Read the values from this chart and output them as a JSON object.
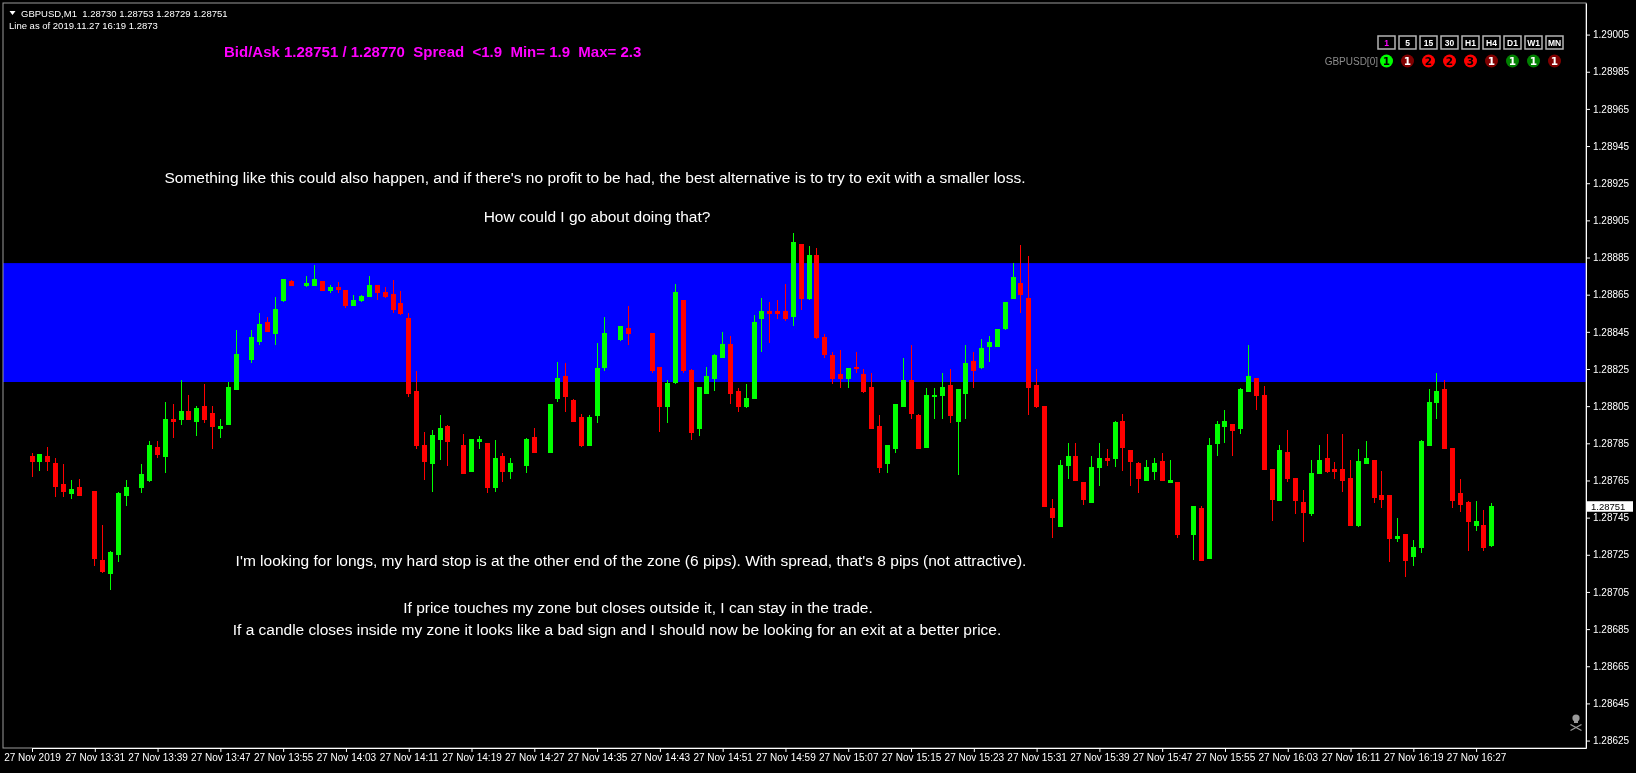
{
  "chart_data": {
    "type": "candlestick",
    "title": "GBPUSD,M1  1.28730 1.28753 1.28729 1.28751",
    "subtitle": "Line as of 2019.11.27 16:19 1.2873",
    "x": [
      "2019-11-27T13:23",
      "2019-11-27T13:24",
      "2019-11-27T13:25",
      "2019-11-27T13:26",
      "2019-11-27T13:27",
      "2019-11-27T13:28",
      "2019-11-27T13:29",
      "2019-11-27T13:31",
      "2019-11-27T13:32",
      "2019-11-27T13:33",
      "2019-11-27T13:34",
      "2019-11-27T13:35",
      "2019-11-27T13:37",
      "2019-11-27T13:38",
      "2019-11-27T13:39",
      "2019-11-27T13:40",
      "2019-11-27T13:41",
      "2019-11-27T13:42",
      "2019-11-27T13:43",
      "2019-11-27T13:44",
      "2019-11-27T13:45",
      "2019-11-27T13:46",
      "2019-11-27T13:47",
      "2019-11-27T13:48",
      "2019-11-27T13:49",
      "2019-11-27T13:51",
      "2019-11-27T13:52",
      "2019-11-27T13:53",
      "2019-11-27T13:54",
      "2019-11-27T13:55",
      "2019-11-27T13:56",
      "2019-11-27T13:58",
      "2019-11-27T13:59",
      "2019-11-27T14:00",
      "2019-11-27T14:01",
      "2019-11-27T14:02",
      "2019-11-27T14:03",
      "2019-11-27T14:04",
      "2019-11-27T14:05",
      "2019-11-27T14:06",
      "2019-11-27T14:07",
      "2019-11-27T14:08",
      "2019-11-27T14:09",
      "2019-11-27T14:10",
      "2019-11-27T14:11",
      "2019-11-27T14:12",
      "2019-11-27T14:13",
      "2019-11-27T14:14",
      "2019-11-27T14:15",
      "2019-11-27T14:16",
      "2019-11-27T14:18",
      "2019-11-27T14:19",
      "2019-11-27T14:20",
      "2019-11-27T14:21",
      "2019-11-27T14:22",
      "2019-11-27T14:23",
      "2019-11-27T14:24",
      "2019-11-27T14:26",
      "2019-11-27T14:27",
      "2019-11-27T14:29",
      "2019-11-27T14:30",
      "2019-11-27T14:31",
      "2019-11-27T14:32",
      "2019-11-27T14:33",
      "2019-11-27T14:34",
      "2019-11-27T14:35",
      "2019-11-27T14:36",
      "2019-11-27T14:38",
      "2019-11-27T14:39",
      "2019-11-27T14:42",
      "2019-11-27T14:43",
      "2019-11-27T14:44",
      "2019-11-27T14:45",
      "2019-11-27T14:46",
      "2019-11-27T14:47",
      "2019-11-27T14:48",
      "2019-11-27T14:49",
      "2019-11-27T14:50",
      "2019-11-27T14:51",
      "2019-11-27T14:52",
      "2019-11-27T14:53",
      "2019-11-27T14:54",
      "2019-11-27T14:55",
      "2019-11-27T14:56",
      "2019-11-27T14:57",
      "2019-11-27T14:58",
      "2019-11-27T14:59",
      "2019-11-27T15:00",
      "2019-11-27T15:01",
      "2019-11-27T15:02",
      "2019-11-27T15:03",
      "2019-11-27T15:04",
      "2019-11-27T15:05",
      "2019-11-27T15:06",
      "2019-11-27T15:07",
      "2019-11-27T15:08",
      "2019-11-27T15:09",
      "2019-11-27T15:10",
      "2019-11-27T15:11",
      "2019-11-27T15:12",
      "2019-11-27T15:13",
      "2019-11-27T15:14",
      "2019-11-27T15:15",
      "2019-11-27T15:16",
      "2019-11-27T15:17",
      "2019-11-27T15:18",
      "2019-11-27T15:19",
      "2019-11-27T15:20",
      "2019-11-27T15:21",
      "2019-11-27T15:22",
      "2019-11-27T15:23",
      "2019-11-27T15:24",
      "2019-11-27T15:25",
      "2019-11-27T15:26",
      "2019-11-27T15:27",
      "2019-11-27T15:28",
      "2019-11-27T15:29",
      "2019-11-27T15:30",
      "2019-11-27T15:31",
      "2019-11-27T15:32",
      "2019-11-27T15:33",
      "2019-11-27T15:34",
      "2019-11-27T15:35",
      "2019-11-27T15:36",
      "2019-11-27T15:37",
      "2019-11-27T15:38",
      "2019-11-27T15:39",
      "2019-11-27T15:40",
      "2019-11-27T15:41",
      "2019-11-27T15:42",
      "2019-11-27T15:43",
      "2019-11-27T15:44",
      "2019-11-27T15:45",
      "2019-11-27T15:46",
      "2019-11-27T15:47",
      "2019-11-27T15:48",
      "2019-11-27T15:49",
      "2019-11-27T15:51",
      "2019-11-27T15:52",
      "2019-11-27T15:53",
      "2019-11-27T15:54",
      "2019-11-27T15:55",
      "2019-11-27T15:56",
      "2019-11-27T15:57",
      "2019-11-27T15:58",
      "2019-11-27T15:59",
      "2019-11-27T16:00",
      "2019-11-27T16:01",
      "2019-11-27T16:02",
      "2019-11-27T16:03",
      "2019-11-27T16:04",
      "2019-11-27T16:05",
      "2019-11-27T16:06",
      "2019-11-27T16:07",
      "2019-11-27T16:08",
      "2019-11-27T16:09",
      "2019-11-27T16:10",
      "2019-11-27T16:11",
      "2019-11-27T16:12",
      "2019-11-27T16:13",
      "2019-11-27T16:14",
      "2019-11-27T16:15",
      "2019-11-27T16:16",
      "2019-11-27T16:17",
      "2019-11-27T16:18",
      "2019-11-27T16:19",
      "2019-11-27T16:20",
      "2019-11-27T16:21",
      "2019-11-27T16:22",
      "2019-11-27T16:23",
      "2019-11-27T16:24",
      "2019-11-27T16:25",
      "2019-11-27T16:26",
      "2019-11-27T16:27",
      "2019-11-27T16:28",
      "2019-11-27T16:29"
    ],
    "ohlc": [
      [
        1.28778,
        1.2878,
        1.28767,
        1.28775
      ],
      [
        1.28775,
        1.28779,
        1.2877,
        1.28779
      ],
      [
        1.28778,
        1.28783,
        1.2877,
        1.28775
      ],
      [
        1.28774,
        1.28777,
        1.28756,
        1.28762
      ],
      [
        1.28763,
        1.28774,
        1.28756,
        1.28759
      ],
      [
        1.28758,
        1.28765,
        1.28755,
        1.2876
      ],
      [
        1.28761,
        1.28766,
        1.28757,
        1.28757
      ],
      [
        1.28759,
        1.28759,
        1.28719,
        1.28723
      ],
      [
        1.28722,
        1.28741,
        1.28715,
        1.28716
      ],
      [
        1.28715,
        1.28727,
        1.28706,
        1.28726
      ],
      [
        1.28725,
        1.28759,
        1.28721,
        1.28758
      ],
      [
        1.28757,
        1.28765,
        1.28751,
        1.28761
      ],
      [
        1.28761,
        1.28774,
        1.28758,
        1.28768
      ],
      [
        1.28765,
        1.28786,
        1.28764,
        1.28784
      ],
      [
        1.28783,
        1.28786,
        1.28777,
        1.28779
      ],
      [
        1.28778,
        1.28807,
        1.28769,
        1.28798
      ],
      [
        1.28798,
        1.28806,
        1.28788,
        1.28797
      ],
      [
        1.28798,
        1.28819,
        1.28795,
        1.28802
      ],
      [
        1.28802,
        1.28811,
        1.28798,
        1.28798
      ],
      [
        1.28797,
        1.28805,
        1.28789,
        1.28804
      ],
      [
        1.28805,
        1.28817,
        1.28796,
        1.28798
      ],
      [
        1.28801,
        1.28805,
        1.28782,
        1.28794
      ],
      [
        1.28793,
        1.28798,
        1.28788,
        1.28794
      ],
      [
        1.28795,
        1.28818,
        1.28795,
        1.28815
      ],
      [
        1.28814,
        1.28846,
        1.28814,
        1.28833
      ],
      [
        1.2883,
        1.28846,
        1.28828,
        1.28842
      ],
      [
        1.2884,
        1.28855,
        1.28838,
        1.28849
      ],
      [
        1.2885,
        1.28853,
        1.28845,
        1.28845
      ],
      [
        1.28844,
        1.28864,
        1.28838,
        1.28857
      ],
      [
        1.28862,
        1.28873,
        1.28861,
        1.28873
      ],
      [
        1.28872,
        1.28873,
        1.2887,
        1.2887
      ],
      [
        1.2887,
        1.28875,
        1.28869,
        1.28871
      ],
      [
        1.2887,
        1.28881,
        1.2887,
        1.28873
      ],
      [
        1.28872,
        1.28872,
        1.28867,
        1.28867
      ],
      [
        1.28867,
        1.2887,
        1.28866,
        1.28869
      ],
      [
        1.28869,
        1.28872,
        1.28866,
        1.28868
      ],
      [
        1.28867,
        1.28867,
        1.28858,
        1.28859
      ],
      [
        1.28859,
        1.28865,
        1.28859,
        1.28862
      ],
      [
        1.28862,
        1.28865,
        1.28861,
        1.28864
      ],
      [
        1.28864,
        1.28875,
        1.28864,
        1.2887
      ],
      [
        1.2887,
        1.2887,
        1.28862,
        1.28866
      ],
      [
        1.28866,
        1.28869,
        1.28863,
        1.28864
      ],
      [
        1.28865,
        1.28873,
        1.28855,
        1.28857
      ],
      [
        1.2886,
        1.28867,
        1.28854,
        1.28855
      ],
      [
        1.28852,
        1.28855,
        1.2881,
        1.28812
      ],
      [
        1.28813,
        1.28824,
        1.28782,
        1.28784
      ],
      [
        1.28784,
        1.28791,
        1.28765,
        1.28775
      ],
      [
        1.28774,
        1.28792,
        1.28759,
        1.28789
      ],
      [
        1.28787,
        1.288,
        1.28776,
        1.28793
      ],
      [
        1.28794,
        1.28795,
        1.28773,
        1.28786
      ],
      [
        1.28784,
        1.2879,
        1.28769,
        1.28769
      ],
      [
        1.2877,
        1.28787,
        1.2877,
        1.28787
      ],
      [
        1.28786,
        1.28789,
        1.28782,
        1.28787
      ],
      [
        1.28785,
        1.28785,
        1.28758,
        1.28761
      ],
      [
        1.28761,
        1.28787,
        1.28759,
        1.28777
      ],
      [
        1.28778,
        1.2878,
        1.28764,
        1.2877
      ],
      [
        1.2877,
        1.28777,
        1.28766,
        1.28774
      ],
      [
        1.28773,
        1.28788,
        1.28769,
        1.28787
      ],
      [
        1.28788,
        1.28793,
        1.2878,
        1.2878
      ],
      [
        1.2878,
        1.28806,
        1.2878,
        1.28806
      ],
      [
        1.28809,
        1.28829,
        1.28807,
        1.2882
      ],
      [
        1.28821,
        1.28828,
        1.28802,
        1.2881
      ],
      [
        1.28808,
        1.28809,
        1.28797,
        1.28797
      ],
      [
        1.28799,
        1.28801,
        1.28783,
        1.28784
      ],
      [
        1.28784,
        1.288,
        1.28784,
        1.28799
      ],
      [
        1.288,
        1.28839,
        1.28796,
        1.28825
      ],
      [
        1.28826,
        1.28853,
        1.28824,
        1.28844
      ],
      [
        1.28841,
        1.28848,
        1.2884,
        1.28848
      ],
      [
        1.28847,
        1.28859,
        1.28838,
        1.28844
      ],
      [
        1.28844,
        1.28844,
        1.28823,
        1.28824
      ],
      [
        1.28826,
        1.28826,
        1.28791,
        1.28805
      ],
      [
        1.28805,
        1.28819,
        1.28796,
        1.28817
      ],
      [
        1.28818,
        1.28871,
        1.28817,
        1.28866
      ],
      [
        1.28862,
        1.28862,
        1.28823,
        1.28824
      ],
      [
        1.28824,
        1.28825,
        1.28787,
        1.28791
      ],
      [
        1.28793,
        1.28815,
        1.28789,
        1.28815
      ],
      [
        1.28812,
        1.28826,
        1.28812,
        1.28821
      ],
      [
        1.2882,
        1.28833,
        1.28813,
        1.28832
      ],
      [
        1.28831,
        1.28845,
        1.28831,
        1.28838
      ],
      [
        1.28838,
        1.28843,
        1.28806,
        1.28812
      ],
      [
        1.28813,
        1.28815,
        1.28802,
        1.28805
      ],
      [
        1.28805,
        1.28817,
        1.28804,
        1.28809
      ],
      [
        1.28809,
        1.28854,
        1.28809,
        1.2885
      ],
      [
        1.28852,
        1.28863,
        1.28834,
        1.28856
      ],
      [
        1.28856,
        1.28861,
        1.28839,
        1.28855
      ],
      [
        1.28856,
        1.28862,
        1.28852,
        1.28855
      ],
      [
        1.28856,
        1.28871,
        1.28851,
        1.28852
      ],
      [
        1.28853,
        1.28898,
        1.28848,
        1.28893
      ],
      [
        1.28892,
        1.28892,
        1.28857,
        1.28863
      ],
      [
        1.28863,
        1.28891,
        1.28862,
        1.28886
      ],
      [
        1.28886,
        1.2889,
        1.28841,
        1.28842
      ],
      [
        1.28842,
        1.28844,
        1.28831,
        1.28833
      ],
      [
        1.28832,
        1.28834,
        1.28817,
        1.2882
      ],
      [
        1.28822,
        1.28835,
        1.28815,
        1.2882
      ],
      [
        1.2882,
        1.28825,
        1.28815,
        1.28825
      ],
      [
        1.28826,
        1.28834,
        1.28823,
        1.28825
      ],
      [
        1.28822,
        1.28825,
        1.28812,
        1.28813
      ],
      [
        1.28815,
        1.28823,
        1.28793,
        1.28793
      ],
      [
        1.28794,
        1.288,
        1.28769,
        1.28772
      ],
      [
        1.28774,
        1.28784,
        1.28769,
        1.28784
      ],
      [
        1.28782,
        1.28806,
        1.2878,
        1.28806
      ],
      [
        1.28805,
        1.28831,
        1.28805,
        1.28819
      ],
      [
        1.28819,
        1.28838,
        1.28798,
        1.28801
      ],
      [
        1.288,
        1.28801,
        1.28782,
        1.28782
      ],
      [
        1.28783,
        1.28815,
        1.28783,
        1.28811
      ],
      [
        1.2881,
        1.28815,
        1.28798,
        1.28811
      ],
      [
        1.28811,
        1.28823,
        1.28798,
        1.28815
      ],
      [
        1.28816,
        1.28825,
        1.28796,
        1.288
      ],
      [
        1.28797,
        1.28814,
        1.28768,
        1.28814
      ],
      [
        1.28812,
        1.28838,
        1.28798,
        1.28828
      ],
      [
        1.28829,
        1.28834,
        1.28815,
        1.28824
      ],
      [
        1.28826,
        1.28841,
        1.28825,
        1.28836
      ],
      [
        1.28837,
        1.28843,
        1.28829,
        1.28839
      ],
      [
        1.28837,
        1.28846,
        1.28837,
        1.28846
      ],
      [
        1.28847,
        1.28861,
        1.28846,
        1.28861
      ],
      [
        1.28863,
        1.28882,
        1.28863,
        1.28874
      ],
      [
        1.28871,
        1.28892,
        1.28855,
        1.28865
      ],
      [
        1.28863,
        1.28886,
        1.288,
        1.28815
      ],
      [
        1.28816,
        1.28825,
        1.28804,
        1.28805
      ],
      [
        1.28805,
        1.28805,
        1.28751,
        1.28751
      ],
      [
        1.2875,
        1.28755,
        1.28734,
        1.28745
      ],
      [
        1.2874,
        1.28776,
        1.2874,
        1.28773
      ],
      [
        1.28773,
        1.28785,
        1.28766,
        1.28778
      ],
      [
        1.28778,
        1.28785,
        1.28765,
        1.28765
      ],
      [
        1.28764,
        1.28764,
        1.28752,
        1.28755
      ],
      [
        1.28753,
        1.28778,
        1.28753,
        1.28772
      ],
      [
        1.28772,
        1.28785,
        1.28762,
        1.28777
      ],
      [
        1.28777,
        1.28782,
        1.28773,
        1.28776
      ],
      [
        1.28777,
        1.28797,
        1.28772,
        1.28796
      ],
      [
        1.28797,
        1.28801,
        1.2877,
        1.28783
      ],
      [
        1.28781,
        1.28781,
        1.28762,
        1.28775
      ],
      [
        1.28774,
        1.28775,
        1.28758,
        1.28766
      ],
      [
        1.28765,
        1.28776,
        1.28765,
        1.28772
      ],
      [
        1.2877,
        1.28777,
        1.28765,
        1.28774
      ],
      [
        1.28775,
        1.2878,
        1.28765,
        1.28765
      ],
      [
        1.28764,
        1.28776,
        1.28764,
        1.28765
      ],
      [
        1.28764,
        1.28764,
        1.28734,
        1.28736
      ],
      [
        1.28736,
        1.28751,
        1.28722,
        1.28751
      ],
      [
        1.2875,
        1.28751,
        1.28722,
        1.28722
      ],
      [
        1.28723,
        1.28788,
        1.28723,
        1.28784
      ],
      [
        1.28785,
        1.28797,
        1.28778,
        1.28795
      ],
      [
        1.28794,
        1.28803,
        1.28785,
        1.28797
      ],
      [
        1.28795,
        1.28795,
        1.28778,
        1.28792
      ],
      [
        1.28793,
        1.28815,
        1.2879,
        1.28814
      ],
      [
        1.28813,
        1.28838,
        1.28813,
        1.28821
      ],
      [
        1.2882,
        1.2882,
        1.28803,
        1.28811
      ],
      [
        1.28811,
        1.28816,
        1.28771,
        1.28771
      ],
      [
        1.28771,
        1.28771,
        1.28743,
        1.28755
      ],
      [
        1.28754,
        1.28784,
        1.28754,
        1.28781
      ],
      [
        1.2878,
        1.28792,
        1.28764,
        1.28766
      ],
      [
        1.28766,
        1.28766,
        1.28747,
        1.28754
      ],
      [
        1.28753,
        1.2876,
        1.28732,
        1.28748
      ],
      [
        1.28747,
        1.28776,
        1.28746,
        1.28769
      ],
      [
        1.28769,
        1.28784,
        1.28769,
        1.28776
      ],
      [
        1.28777,
        1.2879,
        1.28769,
        1.2877
      ],
      [
        1.28771,
        1.28775,
        1.28766,
        1.2877
      ],
      [
        1.28771,
        1.2879,
        1.28759,
        1.28765
      ],
      [
        1.28766,
        1.28776,
        1.28741,
        1.28741
      ],
      [
        1.28741,
        1.28782,
        1.2874,
        1.28775
      ],
      [
        1.28774,
        1.28786,
        1.28774,
        1.28777
      ],
      [
        1.28776,
        1.28776,
        1.28753,
        1.28756
      ],
      [
        1.28757,
        1.2877,
        1.2875,
        1.28755
      ],
      [
        1.28757,
        1.28757,
        1.28721,
        1.28734
      ],
      [
        1.28734,
        1.28745,
        1.28732,
        1.28735
      ],
      [
        1.28736,
        1.28736,
        1.28713,
        1.28722
      ],
      [
        1.28724,
        1.28733,
        1.28719,
        1.28729
      ],
      [
        1.28729,
        1.28787,
        1.28726,
        1.28786
      ],
      [
        1.28784,
        1.28814,
        1.28784,
        1.28807
      ],
      [
        1.28807,
        1.28823,
        1.28798,
        1.28813
      ],
      [
        1.28814,
        1.28819,
        1.28782,
        1.28782
      ],
      [
        1.28782,
        1.28782,
        1.2875,
        1.28754
      ],
      [
        1.28758,
        1.28766,
        1.28748,
        1.28752
      ],
      [
        1.28753,
        1.28754,
        1.28727,
        1.28743
      ],
      [
        1.28741,
        1.28754,
        1.28738,
        1.28743
      ],
      [
        1.28741,
        1.28749,
        1.28727,
        1.28729
      ],
      [
        1.2873,
        1.28753,
        1.28729,
        1.28751
      ]
    ],
    "colors": [
      "#ff0000",
      "#00ff00",
      "#ff0000",
      "#ff0000",
      "#ff0000",
      "#00ff00",
      "#ff0000",
      "#ff0000",
      "#ff0000",
      "#00ff00",
      "#00ff00",
      "#00ff00",
      "#00ff00",
      "#00ff00",
      "#ff0000",
      "#00ff00",
      "#ff0000",
      "#00ff00",
      "#ff0000",
      "#00ff00",
      "#ff0000",
      "#ff0000",
      "#00ff00",
      "#00ff00",
      "#00ff00",
      "#00ff00",
      "#00ff00",
      "#ff0000",
      "#00ff00",
      "#00ff00",
      "#ff0000",
      "#00ff00",
      "#00ff00",
      "#ff0000",
      "#00ff00",
      "#ff0000",
      "#ff0000",
      "#00ff00",
      "#00ff00",
      "#00ff00",
      "#ff0000",
      "#ff0000",
      "#ff0000",
      "#ff0000",
      "#ff0000",
      "#ff0000",
      "#ff0000",
      "#00ff00",
      "#00ff00",
      "#ff0000",
      "#ff0000",
      "#00ff00",
      "#00ff00",
      "#ff0000",
      "#00ff00",
      "#ff0000",
      "#00ff00",
      "#00ff00",
      "#ff0000",
      "#00ff00",
      "#00ff00",
      "#ff0000",
      "#ff0000",
      "#ff0000",
      "#00ff00",
      "#00ff00",
      "#00ff00",
      "#00ff00",
      "#ff0000",
      "#ff0000",
      "#ff0000",
      "#00ff00",
      "#00ff00",
      "#ff0000",
      "#ff0000",
      "#00ff00",
      "#00ff00",
      "#00ff00",
      "#00ff00",
      "#ff0000",
      "#ff0000",
      "#00ff00",
      "#00ff00",
      "#00ff00",
      "#ff0000",
      "#ff0000",
      "#ff0000",
      "#00ff00",
      "#ff0000",
      "#00ff00",
      "#ff0000",
      "#ff0000",
      "#ff0000",
      "#ff0000",
      "#00ff00",
      "#ff0000",
      "#ff0000",
      "#ff0000",
      "#ff0000",
      "#00ff00",
      "#00ff00",
      "#00ff00",
      "#ff0000",
      "#ff0000",
      "#00ff00",
      "#00ff00",
      "#00ff00",
      "#ff0000",
      "#00ff00",
      "#00ff00",
      "#ff0000",
      "#00ff00",
      "#00ff00",
      "#00ff00",
      "#00ff00",
      "#00ff00",
      "#ff0000",
      "#ff0000",
      "#ff0000",
      "#ff0000",
      "#ff0000",
      "#00ff00",
      "#00ff00",
      "#ff0000",
      "#ff0000",
      "#00ff00",
      "#00ff00",
      "#ff0000",
      "#00ff00",
      "#ff0000",
      "#ff0000",
      "#ff0000",
      "#00ff00",
      "#00ff00",
      "#ff0000",
      "#00ff00",
      "#ff0000",
      "#00ff00",
      "#ff0000",
      "#00ff00",
      "#00ff00",
      "#00ff00",
      "#ff0000",
      "#00ff00",
      "#00ff00",
      "#ff0000",
      "#ff0000",
      "#ff0000",
      "#00ff00",
      "#ff0000",
      "#ff0000",
      "#ff0000",
      "#00ff00",
      "#00ff00",
      "#ff0000",
      "#ff0000",
      "#ff0000",
      "#ff0000",
      "#00ff00",
      "#00ff00",
      "#ff0000",
      "#ff0000",
      "#ff0000",
      "#00ff00",
      "#ff0000",
      "#00ff00",
      "#00ff00",
      "#00ff00",
      "#00ff00",
      "#ff0000",
      "#ff0000",
      "#ff0000",
      "#ff0000",
      "#00ff00",
      "#ff0000",
      "#00ff00"
    ],
    "xlim": [
      "2019-11-27T13:23",
      "2019-11-27T16:41"
    ],
    "xticks": [
      {
        "value": "2019-11-27T13:23",
        "label": "27 Nov 2019"
      },
      {
        "value": "2019-11-27T13:31",
        "label": "27 Nov 13:31"
      },
      {
        "value": "2019-11-27T13:39",
        "label": "27 Nov 13:39"
      },
      {
        "value": "2019-11-27T13:47",
        "label": "27 Nov 13:47"
      },
      {
        "value": "2019-11-27T13:55",
        "label": "27 Nov 13:55"
      },
      {
        "value": "2019-11-27T14:03",
        "label": "27 Nov 14:03"
      },
      {
        "value": "2019-11-27T14:11",
        "label": "27 Nov 14:11"
      },
      {
        "value": "2019-11-27T14:19",
        "label": "27 Nov 14:19"
      },
      {
        "value": "2019-11-27T14:27",
        "label": "27 Nov 14:27"
      },
      {
        "value": "2019-11-27T14:35",
        "label": "27 Nov 14:35"
      },
      {
        "value": "2019-11-27T14:43",
        "label": "27 Nov 14:43"
      },
      {
        "value": "2019-11-27T14:51",
        "label": "27 Nov 14:51"
      },
      {
        "value": "2019-11-27T14:59",
        "label": "27 Nov 14:59"
      },
      {
        "value": "2019-11-27T15:07",
        "label": "27 Nov 15:07"
      },
      {
        "value": "2019-11-27T15:15",
        "label": "27 Nov 15:15"
      },
      {
        "value": "2019-11-27T15:23",
        "label": "27 Nov 15:23"
      },
      {
        "value": "2019-11-27T15:31",
        "label": "27 Nov 15:31"
      },
      {
        "value": "2019-11-27T15:39",
        "label": "27 Nov 15:39"
      },
      {
        "value": "2019-11-27T15:47",
        "label": "27 Nov 15:47"
      },
      {
        "value": "2019-11-27T15:55",
        "label": "27 Nov 15:55"
      },
      {
        "value": "2019-11-27T16:03",
        "label": "27 Nov 16:03"
      },
      {
        "value": "2019-11-27T16:11",
        "label": "27 Nov 16:11"
      },
      {
        "value": "2019-11-27T16:19",
        "label": "27 Nov 16:19"
      },
      {
        "value": "2019-11-27T16:27",
        "label": "27 Nov 16:27"
      }
    ],
    "ylim": [
      1.28621,
      1.29022
    ],
    "yticks": [
      1.28625,
      1.28645,
      1.28665,
      1.28685,
      1.28705,
      1.28725,
      1.28745,
      1.28765,
      1.28785,
      1.28805,
      1.28825,
      1.28845,
      1.28865,
      1.28885,
      1.28905,
      1.28925,
      1.28945,
      1.28965,
      1.28985,
      1.29005
    ],
    "bands": [
      {
        "axis": "y",
        "from": 1.28818,
        "to": 1.28882,
        "color": "#0000ff"
      }
    ],
    "annotations": [
      "Bid/Ask 1.28751 / 1.28770  Spread  <1.9  Min= 1.9  Max= 2.3",
      "Something like this could also happen, and if there's no profit to be had, the best alternative is to try to exit with a smaller loss.",
      "How could I go about doing that?",
      "I'm looking for longs, my hard stop is at the other end of the zone (6 pips). With spread, that's 8 pips (not attractive).",
      "If price touches my zone but closes outside it, I can stay in the trade.",
      "If a candle closes inside my zone it looks like a bad sign and I should now be looking for an exit at a better price.",
      "1 5 15 30 H1 H4 D1 W1 MN",
      "GBPUSD[0]",
      "1 1 2 2 3 1 1 1 1",
      "1.28751"
    ]
  }
}
